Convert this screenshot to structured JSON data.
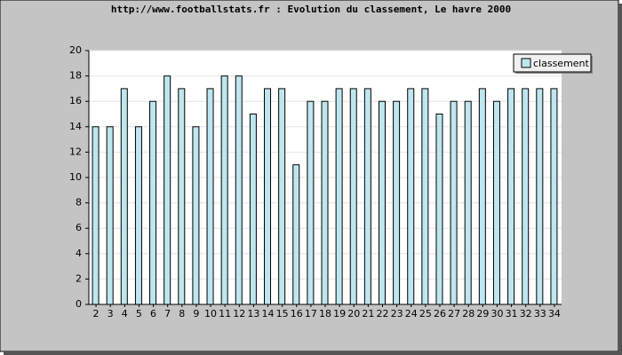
{
  "chart_data": {
    "type": "bar",
    "title": "http://www.footballstats.fr : Evolution du classement, Le havre 2000",
    "categories": [
      "2",
      "3",
      "4",
      "5",
      "6",
      "7",
      "8",
      "9",
      "10",
      "11",
      "12",
      "13",
      "14",
      "15",
      "16",
      "17",
      "18",
      "19",
      "20",
      "21",
      "22",
      "23",
      "24",
      "25",
      "26",
      "27",
      "28",
      "29",
      "30",
      "31",
      "32",
      "33",
      "34"
    ],
    "series": [
      {
        "name": "classement",
        "color": "#bfe6ef",
        "values": [
          14,
          14,
          17,
          14,
          16,
          18,
          17,
          14,
          17,
          18,
          18,
          15,
          17,
          17,
          11,
          16,
          16,
          17,
          17,
          17,
          16,
          16,
          17,
          17,
          15,
          16,
          16,
          17,
          16,
          17,
          17,
          17,
          17
        ]
      }
    ],
    "ylim": [
      0,
      20
    ],
    "yticks": [
      0,
      2,
      4,
      6,
      8,
      10,
      12,
      14,
      16,
      18,
      20
    ],
    "grid": true,
    "legend": "top-right"
  }
}
